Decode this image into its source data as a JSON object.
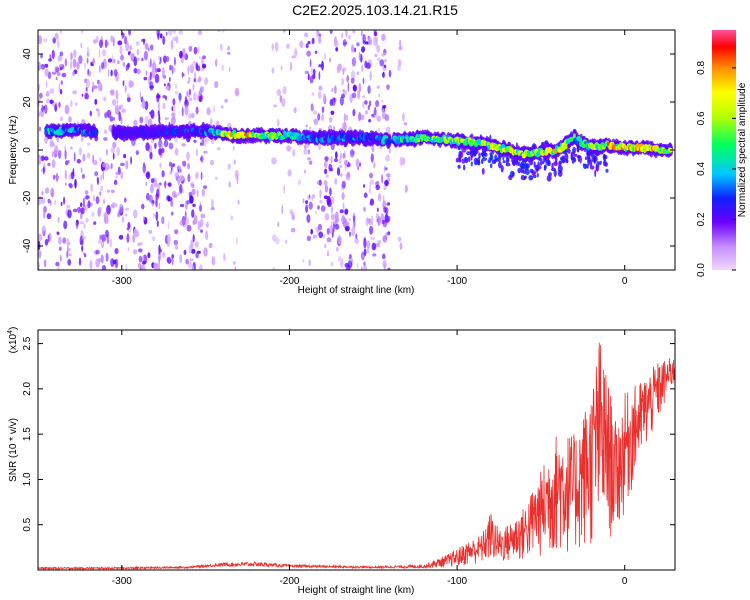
{
  "title": "C2E2.2025.103.14.21.R15",
  "colors": {
    "spectrum_purple": "#6a00ff",
    "snr_line": "#e8312f",
    "axis": "#000000"
  },
  "chart_data": [
    {
      "type": "heatmap",
      "title": "C2E2.2025.103.14.21.R15",
      "xlabel": "Height of straight line (km)",
      "ylabel": "Frequency (Hz)",
      "xlim": [
        -350,
        30
      ],
      "ylim": [
        -50,
        50
      ],
      "xticks": [
        -300,
        -200,
        -100,
        0
      ],
      "xtick_labels": [
        "-300",
        "-200",
        "-100",
        "0"
      ],
      "yticks": [
        -40,
        -20,
        0,
        20,
        40
      ],
      "ytick_labels": [
        "-40",
        "-20",
        "0",
        "20",
        "40"
      ],
      "ridge": {
        "x": [
          -345,
          -320,
          -300,
          -250,
          -230,
          -200,
          -190,
          -150,
          -140,
          -120,
          -100,
          -80,
          -60,
          -40,
          -30,
          -20,
          -10,
          0,
          10,
          20,
          28
        ],
        "frequency_hz": [
          8,
          8,
          7,
          8,
          6,
          6,
          5,
          5,
          4,
          5,
          4,
          2,
          -2,
          0,
          5,
          1,
          2,
          1,
          1,
          0,
          0
        ],
        "peak_amplitude": [
          0.45,
          0.35,
          0.2,
          0.35,
          0.85,
          0.55,
          0.4,
          0.3,
          0.45,
          0.55,
          0.6,
          0.7,
          0.65,
          0.75,
          0.5,
          0.6,
          0.8,
          0.75,
          0.9,
          0.8,
          0.7
        ]
      },
      "noise_bands": [
        {
          "x_range": [
            -350,
            -250
          ],
          "density": "high"
        },
        {
          "x_range": [
            -250,
            -230
          ],
          "density": "low"
        },
        {
          "x_range": [
            -210,
            -190
          ],
          "density": "low"
        },
        {
          "x_range": [
            -190,
            -140
          ],
          "density": "high"
        },
        {
          "x_range": [
            -135,
            -130
          ],
          "density": "low"
        }
      ],
      "colorbar": {
        "label": "Normalized spectral amplitude",
        "range": [
          0.0,
          0.95
        ],
        "ticks": [
          0.0,
          0.2,
          0.4,
          0.6,
          0.8
        ],
        "tick_labels": [
          "0.0",
          "0.2",
          "0.4",
          "0.6",
          "0.8"
        ]
      }
    },
    {
      "type": "line",
      "xlabel": "Height of straight line (km)",
      "ylabel": "SNR (10 * v/v)",
      "scale_label": "(x10",
      "scale_exponent": "4",
      "scale_close": ")",
      "xlim": [
        -350,
        30
      ],
      "ylim": [
        0,
        2.65
      ],
      "xticks": [
        -300,
        -200,
        -100,
        0
      ],
      "xtick_labels": [
        "-300",
        "-200",
        "-100",
        "0"
      ],
      "yticks": [
        0.5,
        1.0,
        1.5,
        2.0,
        2.5
      ],
      "ytick_labels": [
        "0.5",
        "1.0",
        "1.5",
        "2.0",
        "2.5"
      ],
      "series": [
        {
          "name": "SNR",
          "x": [
            -350,
            -300,
            -260,
            -240,
            -220,
            -200,
            -150,
            -120,
            -105,
            -95,
            -85,
            -80,
            -75,
            -70,
            -60,
            -50,
            -45,
            -40,
            -30,
            -20,
            -15,
            -12,
            -5,
            0,
            10,
            20,
            28
          ],
          "upper": [
            0.03,
            0.03,
            0.04,
            0.08,
            0.09,
            0.06,
            0.04,
            0.06,
            0.18,
            0.3,
            0.4,
            0.65,
            0.45,
            0.5,
            0.7,
            1.1,
            1.35,
            1.55,
            1.5,
            2.0,
            2.6,
            2.3,
            1.6,
            1.95,
            2.1,
            2.3,
            2.35
          ],
          "lower": [
            0.01,
            0.01,
            0.02,
            0.04,
            0.04,
            0.03,
            0.02,
            0.02,
            0.03,
            0.05,
            0.06,
            0.08,
            0.06,
            0.07,
            0.08,
            0.12,
            0.12,
            0.15,
            0.15,
            0.2,
            0.25,
            0.3,
            0.35,
            0.6,
            1.2,
            1.6,
            2.0
          ]
        }
      ]
    }
  ]
}
